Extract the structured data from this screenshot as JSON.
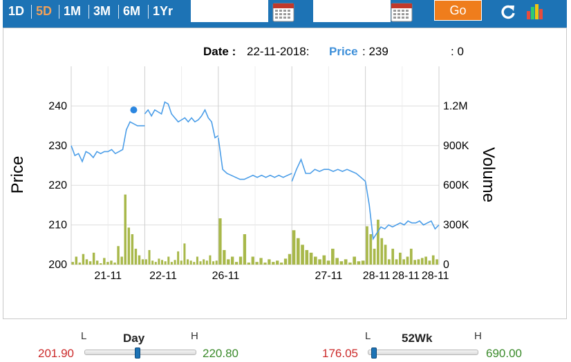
{
  "toolbar": {
    "ranges": [
      "1D",
      "5D",
      "1M",
      "3M",
      "6M",
      "1Yr"
    ],
    "active_range": "5D",
    "from_date": "",
    "to_date": "",
    "go_label": "Go",
    "icons": [
      "calendar-icon",
      "calendar-icon",
      "refresh-icon",
      "bar-chart-icon"
    ]
  },
  "readout": {
    "date_label": "Date :",
    "date_value": "22-11-2018:",
    "price_label": "Price",
    "price_value": ": 239",
    "volume_value": ": 0"
  },
  "chart_data": {
    "type": "line",
    "title": "",
    "ylabel": "Price",
    "y2label": "Volume",
    "ylim": [
      200,
      250
    ],
    "y2lim": [
      0,
      1500000
    ],
    "yticks": [
      "200",
      "210",
      "220",
      "230",
      "240"
    ],
    "y2ticks": [
      "0",
      "300K",
      "600K",
      "900K",
      "1.2M"
    ],
    "xtick_labels": [
      "21-11",
      "22-11",
      "26-11",
      "27-11",
      "28-11",
      "28-11",
      "28-11"
    ],
    "sessions": [
      "21-11",
      "22-11",
      "26-11",
      "27-11",
      "28-11"
    ],
    "highlight_point": {
      "date": "22-11-2018",
      "price": 239
    },
    "series": [
      {
        "name": "Price",
        "color": "#4a9de8",
        "values": [
          [
            230,
            227.5,
            228,
            226,
            228.5,
            228,
            227,
            228.5,
            228,
            228.5,
            228.5,
            229,
            228,
            228.5,
            229,
            234,
            236,
            235.5,
            235,
            235,
            235
          ],
          [
            238,
            239,
            237.5,
            239,
            238.5,
            238,
            241,
            240.5,
            238,
            237,
            236,
            236.5,
            237,
            236,
            237,
            236,
            236.5,
            237.5,
            239,
            237,
            236,
            232,
            232.5
          ],
          [
            232,
            224,
            223,
            222.5,
            222,
            221.5,
            221.5,
            222,
            222.5,
            222,
            222.5,
            222,
            222.5,
            222,
            222.5,
            222,
            222.5,
            223
          ],
          [
            221,
            224,
            226.5,
            223,
            223,
            224,
            223.5,
            224,
            224,
            223.5,
            224,
            223.5,
            224,
            223.5,
            223,
            222,
            221
          ],
          [
            221,
            215,
            206.5,
            208,
            209.5,
            209,
            210,
            209.5,
            210,
            210.5,
            210,
            211,
            210.5,
            210.5,
            211,
            210,
            210.5,
            211,
            209,
            210
          ]
        ]
      }
    ],
    "volume": [
      [
        20,
        60,
        15,
        80,
        40,
        25,
        90,
        30,
        10,
        50,
        20,
        30,
        15,
        140,
        60,
        530,
        280,
        230,
        120,
        70,
        40
      ],
      [
        40,
        110,
        30,
        20,
        45,
        35,
        25,
        60,
        20,
        35,
        100,
        30,
        160,
        40,
        30,
        20,
        60,
        25,
        40,
        30,
        70,
        25,
        30
      ],
      [
        350,
        110,
        40,
        60,
        20,
        60,
        230,
        15,
        60,
        20,
        50,
        15,
        40,
        20,
        30,
        15,
        45,
        80
      ],
      [
        260,
        200,
        150,
        110,
        90,
        60,
        40,
        70,
        30,
        120,
        50,
        25,
        40,
        15,
        60,
        25,
        30
      ],
      [
        290,
        230,
        120,
        340,
        200,
        150,
        40,
        120,
        40,
        90,
        40,
        60,
        120,
        35,
        40,
        50,
        60,
        30,
        70,
        40
      ]
    ]
  },
  "day_range": {
    "title": "Day",
    "low_marker": "L",
    "high_marker": "H",
    "low": "201.90",
    "high": "220.80",
    "position": 0.48
  },
  "week52_range": {
    "title": "52Wk",
    "low_marker": "L",
    "high_marker": "H",
    "low": "176.05",
    "high": "690.00",
    "position": 0.06
  },
  "colors": {
    "toolbar": "#1d73b5",
    "active_range": "#f0a05a",
    "go_button": "#ef7d1c",
    "price_line": "#4a9de8",
    "volume_bar": "#a8b84a",
    "low_value": "#cc2a2a",
    "high_value": "#3a8a2a"
  }
}
